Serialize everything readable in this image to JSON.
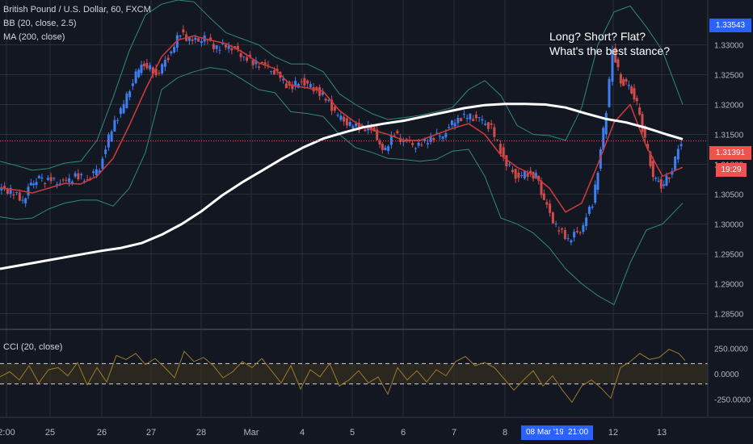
{
  "legend": {
    "symbol": "British Pound / U.S. Dollar, 60, FXCM",
    "bb": "BB (20, close, 2.5)",
    "ma": "MA (200, close)",
    "cci": "CCI (20, close)"
  },
  "annotation": {
    "line1": "Long? Short? Flat?",
    "line2": "What's the best stance?"
  },
  "price_tags": {
    "top": "1.33543",
    "current": "1.31391",
    "countdown": "19:29"
  },
  "x_tags": {
    "date": "08 Mar '19",
    "time": "21:00"
  },
  "colors": {
    "background": "#131722",
    "grid": "#2a2e39",
    "candle_up": "#3d7ef0",
    "candle_down": "#d14b4b",
    "bb_band": "#2e8a7a",
    "bb_basis": "#c83a3a",
    "ma200": "#ffffff",
    "cci_line": "#9c7a2a",
    "cci_fill": "#3a3222",
    "price_line": "#ef5350",
    "tag_blue": "#2962ff",
    "tag_red": "#ef5350"
  },
  "chart_data": [
    {
      "type": "line",
      "panel": "price",
      "y_axis_ticks": [
        "1.28500",
        "1.29000",
        "1.29500",
        "1.30000",
        "1.30500",
        "1.31000",
        "1.31500",
        "1.32000",
        "1.32500",
        "1.33000"
      ],
      "ylim": [
        1.2825,
        1.3375
      ],
      "x_axis_ticks": [
        "2:00",
        "25",
        "26",
        "27",
        "28",
        "Mar",
        "4",
        "5",
        "6",
        "7",
        "8",
        "12",
        "13"
      ],
      "series": [
        {
          "name": "MA (200, close)",
          "x": [
            0,
            25,
            50,
            75,
            100,
            125,
            150,
            175,
            200,
            225,
            250,
            275,
            300,
            325,
            350,
            375,
            400,
            425,
            450,
            475,
            500,
            525,
            550,
            575,
            600,
            625,
            650,
            675,
            700,
            725,
            750,
            775,
            800,
            825,
            845
          ],
          "values": [
            1.2925,
            1.2931,
            1.2937,
            1.2943,
            1.2949,
            1.2955,
            1.296,
            1.2968,
            1.2982,
            1.3,
            1.3022,
            1.3048,
            1.307,
            1.309,
            1.311,
            1.3128,
            1.3143,
            1.3153,
            1.3162,
            1.3168,
            1.3173,
            1.318,
            1.3187,
            1.3194,
            1.3199,
            1.3201,
            1.3201,
            1.32,
            1.3195,
            1.3185,
            1.3176,
            1.317,
            1.3161,
            1.315,
            1.3142
          ]
        },
        {
          "name": "BB basis",
          "x": [
            0,
            20,
            40,
            60,
            80,
            100,
            120,
            140,
            160,
            180,
            200,
            220,
            240,
            260,
            280,
            300,
            320,
            340,
            360,
            380,
            400,
            420,
            440,
            460,
            480,
            500,
            520,
            540,
            560,
            580,
            600,
            620,
            640,
            660,
            680,
            700,
            720,
            740,
            760,
            780,
            800,
            820,
            845
          ],
          "values": [
            1.306,
            1.3057,
            1.3052,
            1.306,
            1.3068,
            1.3067,
            1.308,
            1.311,
            1.3165,
            1.3225,
            1.328,
            1.3308,
            1.3315,
            1.3308,
            1.3302,
            1.3288,
            1.327,
            1.326,
            1.3232,
            1.3228,
            1.3222,
            1.319,
            1.317,
            1.3158,
            1.315,
            1.314,
            1.314,
            1.315,
            1.316,
            1.3168,
            1.315,
            1.3115,
            1.3095,
            1.3082,
            1.306,
            1.302,
            1.3035,
            1.31,
            1.317,
            1.32,
            1.313,
            1.308,
            1.3095
          ]
        },
        {
          "name": "BB upper",
          "x": [
            0,
            20,
            40,
            60,
            80,
            100,
            120,
            140,
            160,
            180,
            200,
            220,
            240,
            260,
            280,
            300,
            320,
            340,
            360,
            380,
            400,
            420,
            440,
            460,
            480,
            500,
            520,
            540,
            560,
            580,
            600,
            620,
            640,
            660,
            680,
            700,
            720,
            740,
            760,
            780,
            800,
            820,
            845
          ],
          "values": [
            1.3105,
            1.3098,
            1.309,
            1.3093,
            1.3102,
            1.3105,
            1.314,
            1.3212,
            1.329,
            1.335,
            1.3368,
            1.3375,
            1.3372,
            1.3345,
            1.332,
            1.331,
            1.33,
            1.328,
            1.3268,
            1.3268,
            1.3255,
            1.3218,
            1.32,
            1.3185,
            1.3175,
            1.3178,
            1.3182,
            1.3188,
            1.3195,
            1.3225,
            1.324,
            1.3215,
            1.3165,
            1.315,
            1.3148,
            1.314,
            1.3195,
            1.33,
            1.3355,
            1.3365,
            1.333,
            1.329,
            1.32
          ]
        },
        {
          "name": "BB lower",
          "x": [
            0,
            20,
            40,
            60,
            80,
            100,
            120,
            140,
            160,
            180,
            200,
            220,
            240,
            260,
            280,
            300,
            320,
            340,
            360,
            380,
            400,
            420,
            440,
            460,
            480,
            500,
            520,
            540,
            560,
            580,
            600,
            620,
            640,
            660,
            680,
            700,
            720,
            740,
            760,
            780,
            800,
            820,
            845
          ],
          "values": [
            1.3012,
            1.3008,
            1.301,
            1.3025,
            1.3035,
            1.304,
            1.304,
            1.303,
            1.306,
            1.312,
            1.3225,
            1.3245,
            1.3255,
            1.3262,
            1.3258,
            1.3242,
            1.3225,
            1.322,
            1.3188,
            1.3185,
            1.318,
            1.315,
            1.3128,
            1.312,
            1.311,
            1.3108,
            1.3105,
            1.3108,
            1.3122,
            1.3125,
            1.308,
            1.301,
            1.3,
            1.2985,
            1.296,
            1.2925,
            1.29,
            1.288,
            1.2865,
            1.2935,
            1.299,
            1.3,
            1.3035
          ]
        },
        {
          "name": "Close",
          "x": [
            0,
            15,
            30,
            40,
            50,
            65,
            80,
            95,
            110,
            125,
            140,
            155,
            170,
            180,
            195,
            210,
            225,
            240,
            255,
            270,
            285,
            300,
            315,
            330,
            345,
            360,
            375,
            390,
            405,
            420,
            435,
            450,
            465,
            475,
            490,
            505,
            520,
            535,
            550,
            565,
            580,
            595,
            610,
            625,
            640,
            655,
            665,
            675,
            690,
            705,
            720,
            735,
            745,
            752,
            760,
            770,
            780,
            790,
            800,
            810,
            820,
            830,
            845
          ],
          "values": [
            1.306,
            1.3055,
            1.304,
            1.3068,
            1.3075,
            1.3072,
            1.3068,
            1.308,
            1.3075,
            1.3095,
            1.316,
            1.32,
            1.325,
            1.327,
            1.325,
            1.328,
            1.332,
            1.3305,
            1.331,
            1.3295,
            1.33,
            1.3285,
            1.327,
            1.3265,
            1.325,
            1.3228,
            1.324,
            1.3228,
            1.321,
            1.318,
            1.3165,
            1.3162,
            1.3158,
            1.312,
            1.315,
            1.3135,
            1.313,
            1.3145,
            1.315,
            1.3175,
            1.318,
            1.3175,
            1.316,
            1.311,
            1.308,
            1.3085,
            1.308,
            1.304,
            1.2995,
            1.2975,
            1.299,
            1.3035,
            1.312,
            1.319,
            1.329,
            1.324,
            1.3232,
            1.32,
            1.314,
            1.308,
            1.3065,
            1.308,
            1.3139
          ]
        }
      ]
    },
    {
      "type": "line",
      "panel": "indicator",
      "title": "CCI (20, close)",
      "y_axis_ticks": [
        "250.0000",
        "0.0000",
        "-250.0000"
      ],
      "ylim": [
        -420,
        420
      ],
      "reference_lines": [
        100,
        -100
      ],
      "series": [
        {
          "name": "CCI (20, close)",
          "x": [
            0,
            12,
            24,
            36,
            48,
            60,
            72,
            84,
            96,
            108,
            120,
            132,
            144,
            156,
            168,
            180,
            192,
            204,
            216,
            228,
            240,
            252,
            264,
            276,
            288,
            300,
            312,
            324,
            336,
            348,
            360,
            372,
            384,
            396,
            408,
            420,
            432,
            444,
            456,
            468,
            480,
            492,
            504,
            516,
            528,
            540,
            552,
            564,
            576,
            588,
            600,
            612,
            624,
            636,
            648,
            660,
            672,
            684,
            696,
            708,
            720,
            732,
            744,
            756,
            768,
            780,
            792,
            804,
            816,
            828,
            840,
            848
          ],
          "values": [
            -30,
            20,
            -60,
            80,
            -90,
            40,
            60,
            -20,
            110,
            -110,
            60,
            -80,
            180,
            140,
            200,
            90,
            150,
            60,
            -40,
            220,
            120,
            160,
            80,
            -40,
            20,
            120,
            60,
            150,
            30,
            -90,
            80,
            -150,
            40,
            -30,
            100,
            -120,
            -60,
            30,
            -90,
            -30,
            -200,
            60,
            -60,
            30,
            -80,
            40,
            -20,
            120,
            170,
            80,
            110,
            60,
            -50,
            -160,
            -60,
            30,
            -120,
            -20,
            -160,
            -280,
            -120,
            -60,
            -140,
            -240,
            60,
            120,
            200,
            140,
            160,
            240,
            200,
            130
          ]
        }
      ]
    }
  ]
}
